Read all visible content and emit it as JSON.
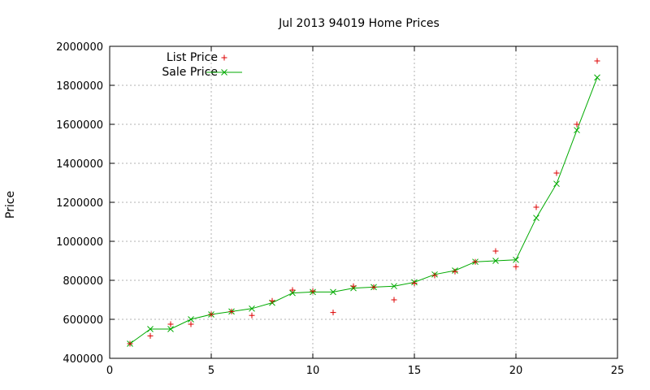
{
  "chart_data": {
    "type": "line",
    "title": "Jul 2013 94019 Home Prices",
    "xlabel": "",
    "ylabel": "Price",
    "xlim": [
      0,
      25
    ],
    "ylim": [
      400000,
      2000000
    ],
    "xticks": [
      0,
      5,
      10,
      15,
      20,
      25
    ],
    "yticks": [
      400000,
      600000,
      800000,
      1000000,
      1200000,
      1400000,
      1600000,
      1800000,
      2000000
    ],
    "grid": true,
    "legend_position": "top-left",
    "series": [
      {
        "name": "List Price",
        "style": "points-plus",
        "color": "#dd0000",
        "x": [
          1,
          2,
          3,
          4,
          5,
          6,
          7,
          8,
          9,
          10,
          11,
          12,
          13,
          14,
          15,
          16,
          17,
          18,
          19,
          20,
          21,
          22,
          23,
          24
        ],
        "values": [
          475000,
          515000,
          575000,
          575000,
          625000,
          640000,
          620000,
          695000,
          750000,
          745000,
          635000,
          770000,
          765000,
          700000,
          785000,
          825000,
          845000,
          895000,
          950000,
          870000,
          1175000,
          1350000,
          1600000,
          1925000
        ]
      },
      {
        "name": "Sale Price",
        "style": "linespoints-x",
        "color": "#00aa00",
        "x": [
          1,
          2,
          3,
          4,
          5,
          6,
          7,
          8,
          9,
          10,
          11,
          12,
          13,
          14,
          15,
          16,
          17,
          18,
          19,
          20,
          21,
          22,
          23,
          24
        ],
        "values": [
          475000,
          550000,
          550000,
          600000,
          625000,
          640000,
          655000,
          685000,
          735000,
          740000,
          740000,
          760000,
          765000,
          770000,
          790000,
          830000,
          850000,
          895000,
          900000,
          905000,
          1120000,
          1295000,
          1570000,
          1840000
        ]
      }
    ]
  }
}
